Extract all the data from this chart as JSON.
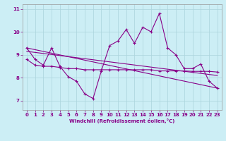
{
  "xlabel": "Windchill (Refroidissement éolien,°C)",
  "bg_color": "#cceef5",
  "line_color": "#880088",
  "grid_color": "#aad4dc",
  "xlim": [
    -0.5,
    23.5
  ],
  "ylim": [
    6.6,
    11.2
  ],
  "xticks": [
    0,
    1,
    2,
    3,
    4,
    5,
    6,
    7,
    8,
    9,
    10,
    11,
    12,
    13,
    14,
    15,
    16,
    17,
    18,
    19,
    20,
    21,
    22,
    23
  ],
  "yticks": [
    7,
    8,
    9,
    10,
    11
  ],
  "line1_x": [
    0,
    1,
    2,
    3,
    4,
    5,
    6,
    7,
    8,
    9,
    10,
    11,
    12,
    13,
    14,
    15,
    16,
    17,
    18,
    19,
    20,
    21,
    22,
    23
  ],
  "line1_y": [
    9.3,
    8.8,
    8.55,
    9.3,
    8.5,
    8.05,
    7.85,
    7.3,
    7.1,
    8.3,
    9.4,
    9.6,
    10.1,
    9.5,
    10.2,
    10.0,
    10.8,
    9.3,
    9.0,
    8.4,
    8.4,
    8.6,
    7.85,
    7.55
  ],
  "line2_x": [
    0,
    1,
    2,
    3,
    4,
    5,
    6,
    7,
    8,
    9,
    10,
    11,
    12,
    13,
    14,
    15,
    16,
    17,
    18,
    19,
    20,
    21,
    22,
    23
  ],
  "line2_y": [
    8.8,
    8.55,
    8.5,
    8.5,
    8.45,
    8.4,
    8.4,
    8.35,
    8.35,
    8.35,
    8.35,
    8.35,
    8.35,
    8.35,
    8.35,
    8.35,
    8.3,
    8.3,
    8.3,
    8.3,
    8.28,
    8.28,
    8.28,
    8.25
  ],
  "line3_x": [
    0,
    23
  ],
  "line3_y": [
    9.3,
    7.55
  ],
  "line4_x": [
    0,
    23
  ],
  "line4_y": [
    9.15,
    8.1
  ]
}
